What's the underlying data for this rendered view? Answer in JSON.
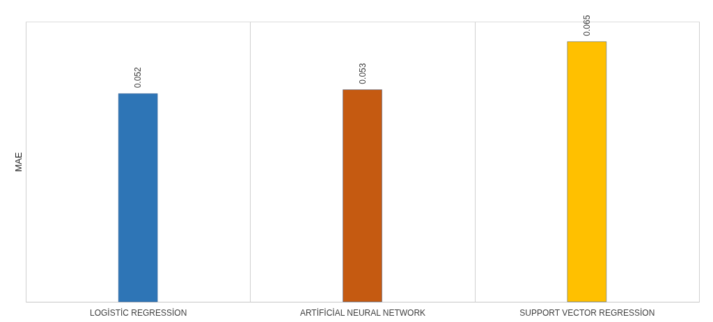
{
  "chart_data": {
    "type": "bar",
    "categories": [
      "LOGİSTİC REGRESSİON",
      "ARTİFİCİAL NEURAL NETWORK",
      "SUPPORT VECTOR REGRESSİON"
    ],
    "values": [
      0.052,
      0.053,
      0.065
    ],
    "colors": [
      "#2e75b6",
      "#c55a11",
      "#ffc000"
    ],
    "ylabel": "MAE",
    "ylim": [
      0,
      0.07
    ],
    "tick_labels": "x",
    "grid": "x",
    "data_labels": true
  }
}
